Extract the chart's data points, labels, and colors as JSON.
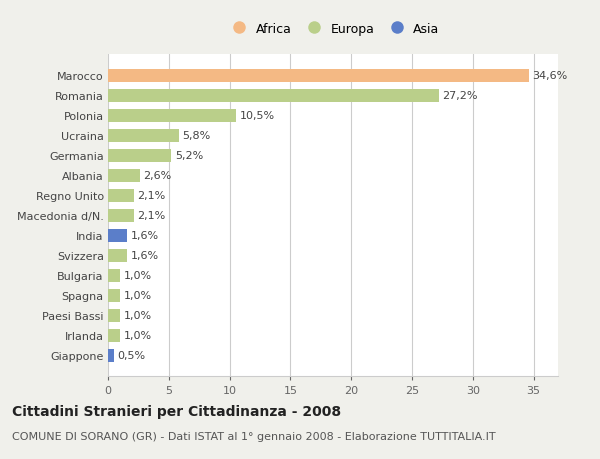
{
  "categories": [
    "Marocco",
    "Romania",
    "Polonia",
    "Ucraina",
    "Germania",
    "Albania",
    "Regno Unito",
    "Macedonia d/N.",
    "India",
    "Svizzera",
    "Bulgaria",
    "Spagna",
    "Paesi Bassi",
    "Irlanda",
    "Giappone"
  ],
  "values": [
    34.6,
    27.2,
    10.5,
    5.8,
    5.2,
    2.6,
    2.1,
    2.1,
    1.6,
    1.6,
    1.0,
    1.0,
    1.0,
    1.0,
    0.5
  ],
  "labels": [
    "34,6%",
    "27,2%",
    "10,5%",
    "5,8%",
    "5,2%",
    "2,6%",
    "2,1%",
    "2,1%",
    "1,6%",
    "1,6%",
    "1,0%",
    "1,0%",
    "1,0%",
    "1,0%",
    "0,5%"
  ],
  "continent": [
    "Africa",
    "Europa",
    "Europa",
    "Europa",
    "Europa",
    "Europa",
    "Europa",
    "Europa",
    "Asia",
    "Europa",
    "Europa",
    "Europa",
    "Europa",
    "Europa",
    "Asia"
  ],
  "colors": {
    "Africa": "#F4B984",
    "Europa": "#BACF8A",
    "Asia": "#5B7EC9"
  },
  "legend_labels": [
    "Africa",
    "Europa",
    "Asia"
  ],
  "legend_colors": [
    "#F4B984",
    "#BACF8A",
    "#5B7EC9"
  ],
  "xlim": [
    0,
    37
  ],
  "xticks": [
    0,
    5,
    10,
    15,
    20,
    25,
    30,
    35
  ],
  "title": "Cittadini Stranieri per Cittadinanza - 2008",
  "subtitle": "COMUNE DI SORANO (GR) - Dati ISTAT al 1° gennaio 2008 - Elaborazione TUTTITALIA.IT",
  "title_fontsize": 10,
  "subtitle_fontsize": 8,
  "background_color": "#F0F0EB",
  "bar_background": "#FFFFFF",
  "grid_color": "#CCCCCC",
  "label_fontsize": 8,
  "ytick_fontsize": 8
}
